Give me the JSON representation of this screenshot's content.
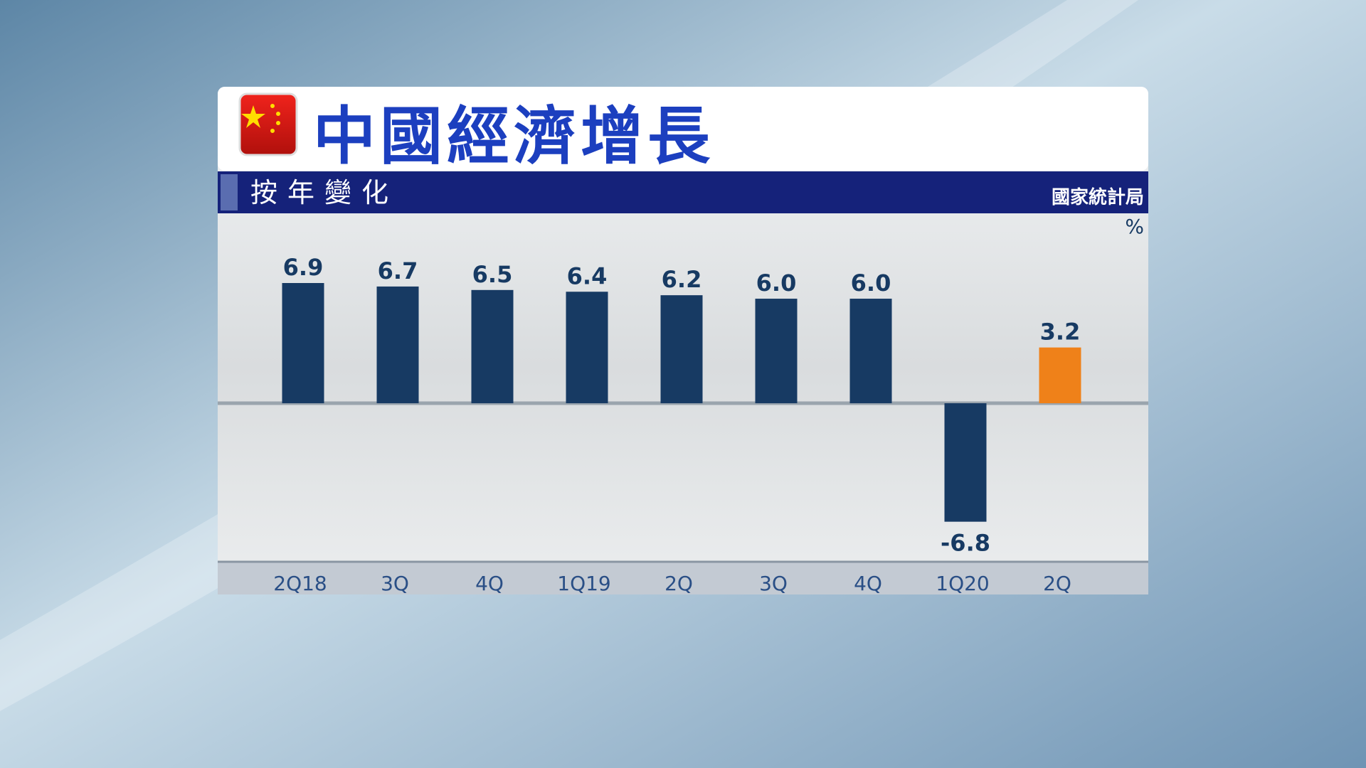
{
  "chart_data": {
    "type": "bar",
    "title": "中國經濟增長",
    "subtitle": "按年變化",
    "source": "國家統計局",
    "unit": "%",
    "categories": [
      "2Q18",
      "3Q",
      "4Q",
      "1Q19",
      "2Q",
      "3Q",
      "4Q",
      "1Q20",
      "2Q"
    ],
    "values": [
      6.9,
      6.7,
      6.5,
      6.4,
      6.2,
      6.0,
      6.0,
      -6.8,
      3.2
    ],
    "value_labels": [
      "6.9",
      "6.7",
      "6.5",
      "6.4",
      "6.2",
      "6.0",
      "6.0",
      "-6.8",
      "3.2"
    ],
    "colors": [
      "#173a63",
      "#173a63",
      "#173a63",
      "#173a63",
      "#173a63",
      "#173a63",
      "#173a63",
      "#173a63",
      "#ef8119"
    ],
    "ylim": [
      -9.1,
      10.9
    ]
  }
}
